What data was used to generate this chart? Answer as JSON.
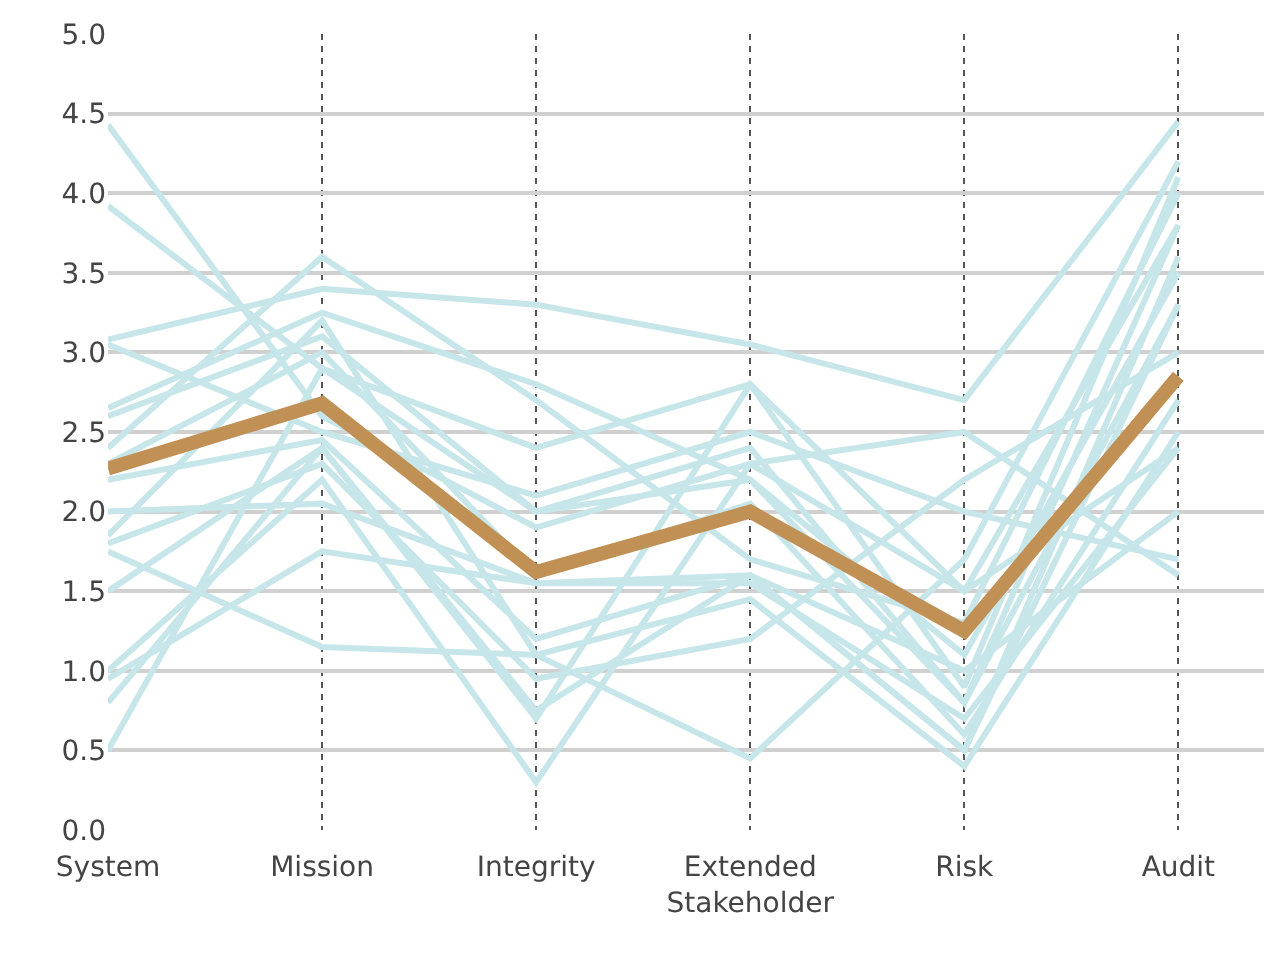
{
  "chart_data": {
    "type": "line",
    "categories": [
      "System",
      "Mission",
      "Integrity",
      "Extended\nStakeholder",
      "Risk",
      "Audit"
    ],
    "ylim": [
      0,
      5
    ],
    "yticks": [
      {
        "value": 0,
        "label": "0.0"
      },
      {
        "value": 0.5,
        "label": "0.5"
      },
      {
        "value": 1,
        "label": "1.0"
      },
      {
        "value": 1.5,
        "label": "1.5"
      },
      {
        "value": 2,
        "label": "2.0"
      },
      {
        "value": 2.5,
        "label": "2.5"
      },
      {
        "value": 3,
        "label": "3.0"
      },
      {
        "value": 3.5,
        "label": "3.5"
      },
      {
        "value": 4,
        "label": "4.0"
      },
      {
        "value": 4.5,
        "label": "4.5"
      },
      {
        "value": 5,
        "label": "5.0"
      }
    ],
    "grid": true,
    "marker": "none",
    "line_style": "solid",
    "series": [
      {
        "color": "#c6e6ea",
        "values": [
          4.43,
          2.6,
          1.9,
          2.3,
          1.5,
          3.8
        ]
      },
      {
        "color": "#c6e6ea",
        "values": [
          3.92,
          2.9,
          2.4,
          2.8,
          0.9,
          4.1
        ]
      },
      {
        "color": "#c6e6ea",
        "values": [
          3.08,
          3.4,
          3.3,
          3.05,
          2.7,
          4.45
        ]
      },
      {
        "color": "#c6e6ea",
        "values": [
          3.05,
          2.5,
          2.1,
          2.5,
          2.0,
          1.7
        ]
      },
      {
        "color": "#c6e6ea",
        "values": [
          2.65,
          3.25,
          2.8,
          2.2,
          1.1,
          3.5
        ]
      },
      {
        "color": "#c6e6ea",
        "values": [
          2.6,
          3.1,
          2.0,
          2.4,
          0.8,
          3.3
        ]
      },
      {
        "color": "#c6e6ea",
        "values": [
          2.4,
          3.6,
          2.7,
          1.7,
          1.3,
          4.0
        ]
      },
      {
        "color": "#c6e6ea",
        "values": [
          2.3,
          3.0,
          1.6,
          2.05,
          0.6,
          2.7
        ]
      },
      {
        "color": "#c6e6ea",
        "values": [
          2.2,
          2.45,
          1.2,
          1.6,
          0.5,
          3.6
        ]
      },
      {
        "color": "#c6e6ea",
        "values": [
          2.0,
          2.05,
          1.55,
          1.55,
          0.7,
          2.4
        ]
      },
      {
        "color": "#c6e6ea",
        "values": [
          1.85,
          3.2,
          1.1,
          0.45,
          1.7,
          4.2
        ]
      },
      {
        "color": "#c6e6ea",
        "values": [
          1.8,
          2.3,
          0.95,
          1.2,
          2.2,
          3.0
        ]
      },
      {
        "color": "#c6e6ea",
        "values": [
          1.75,
          1.15,
          1.1,
          1.45,
          0.4,
          2.5
        ]
      },
      {
        "color": "#c6e6ea",
        "values": [
          1.5,
          2.4,
          0.75,
          1.6,
          1.0,
          2.0
        ]
      },
      {
        "color": "#c6e6ea",
        "values": [
          1.0,
          2.2,
          0.3,
          2.3,
          2.5,
          1.6
        ]
      },
      {
        "color": "#c6e6ea",
        "values": [
          0.95,
          1.75,
          1.55,
          1.6,
          0.5,
          3.3
        ]
      },
      {
        "color": "#c6e6ea",
        "values": [
          0.8,
          2.4,
          0.7,
          2.8,
          1.5,
          2.4
        ]
      },
      {
        "color": "#c6e6ea",
        "values": [
          0.5,
          2.9,
          2.0,
          2.2,
          0.8,
          3.8
        ]
      },
      {
        "color": "#c09055",
        "values": [
          2.27,
          2.68,
          1.62,
          2.0,
          1.25,
          2.85
        ]
      }
    ]
  }
}
